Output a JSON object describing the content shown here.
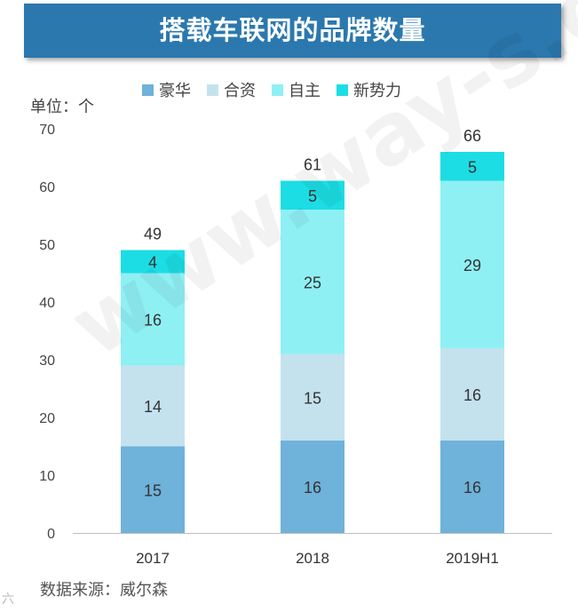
{
  "banner": {
    "title": "搭载车联网的品牌数量"
  },
  "unit_label": "单位：个",
  "source_label": "数据来源：威尔森",
  "watermark_text": "www.way-s.cn",
  "corner_mark": "六",
  "chart_data": {
    "type": "bar",
    "stacked": true,
    "title": "搭载车联网的品牌数量",
    "xlabel": "",
    "ylabel": "单位：个",
    "ylim": [
      0,
      70
    ],
    "yticks": [
      0,
      10,
      20,
      30,
      40,
      50,
      60,
      70
    ],
    "categories": [
      "2017",
      "2018",
      "2019H1"
    ],
    "totals": [
      49,
      61,
      66
    ],
    "legend_position": "top",
    "grid": false,
    "series": [
      {
        "name": "豪华",
        "color": "#6fb2da",
        "values": [
          15,
          16,
          16
        ]
      },
      {
        "name": "合资",
        "color": "#c4e2ee",
        "values": [
          14,
          15,
          16
        ]
      },
      {
        "name": "自主",
        "color": "#8ff0f4",
        "values": [
          16,
          25,
          29
        ]
      },
      {
        "name": "新势力",
        "color": "#1ddde4",
        "values": [
          4,
          5,
          5
        ]
      }
    ]
  }
}
